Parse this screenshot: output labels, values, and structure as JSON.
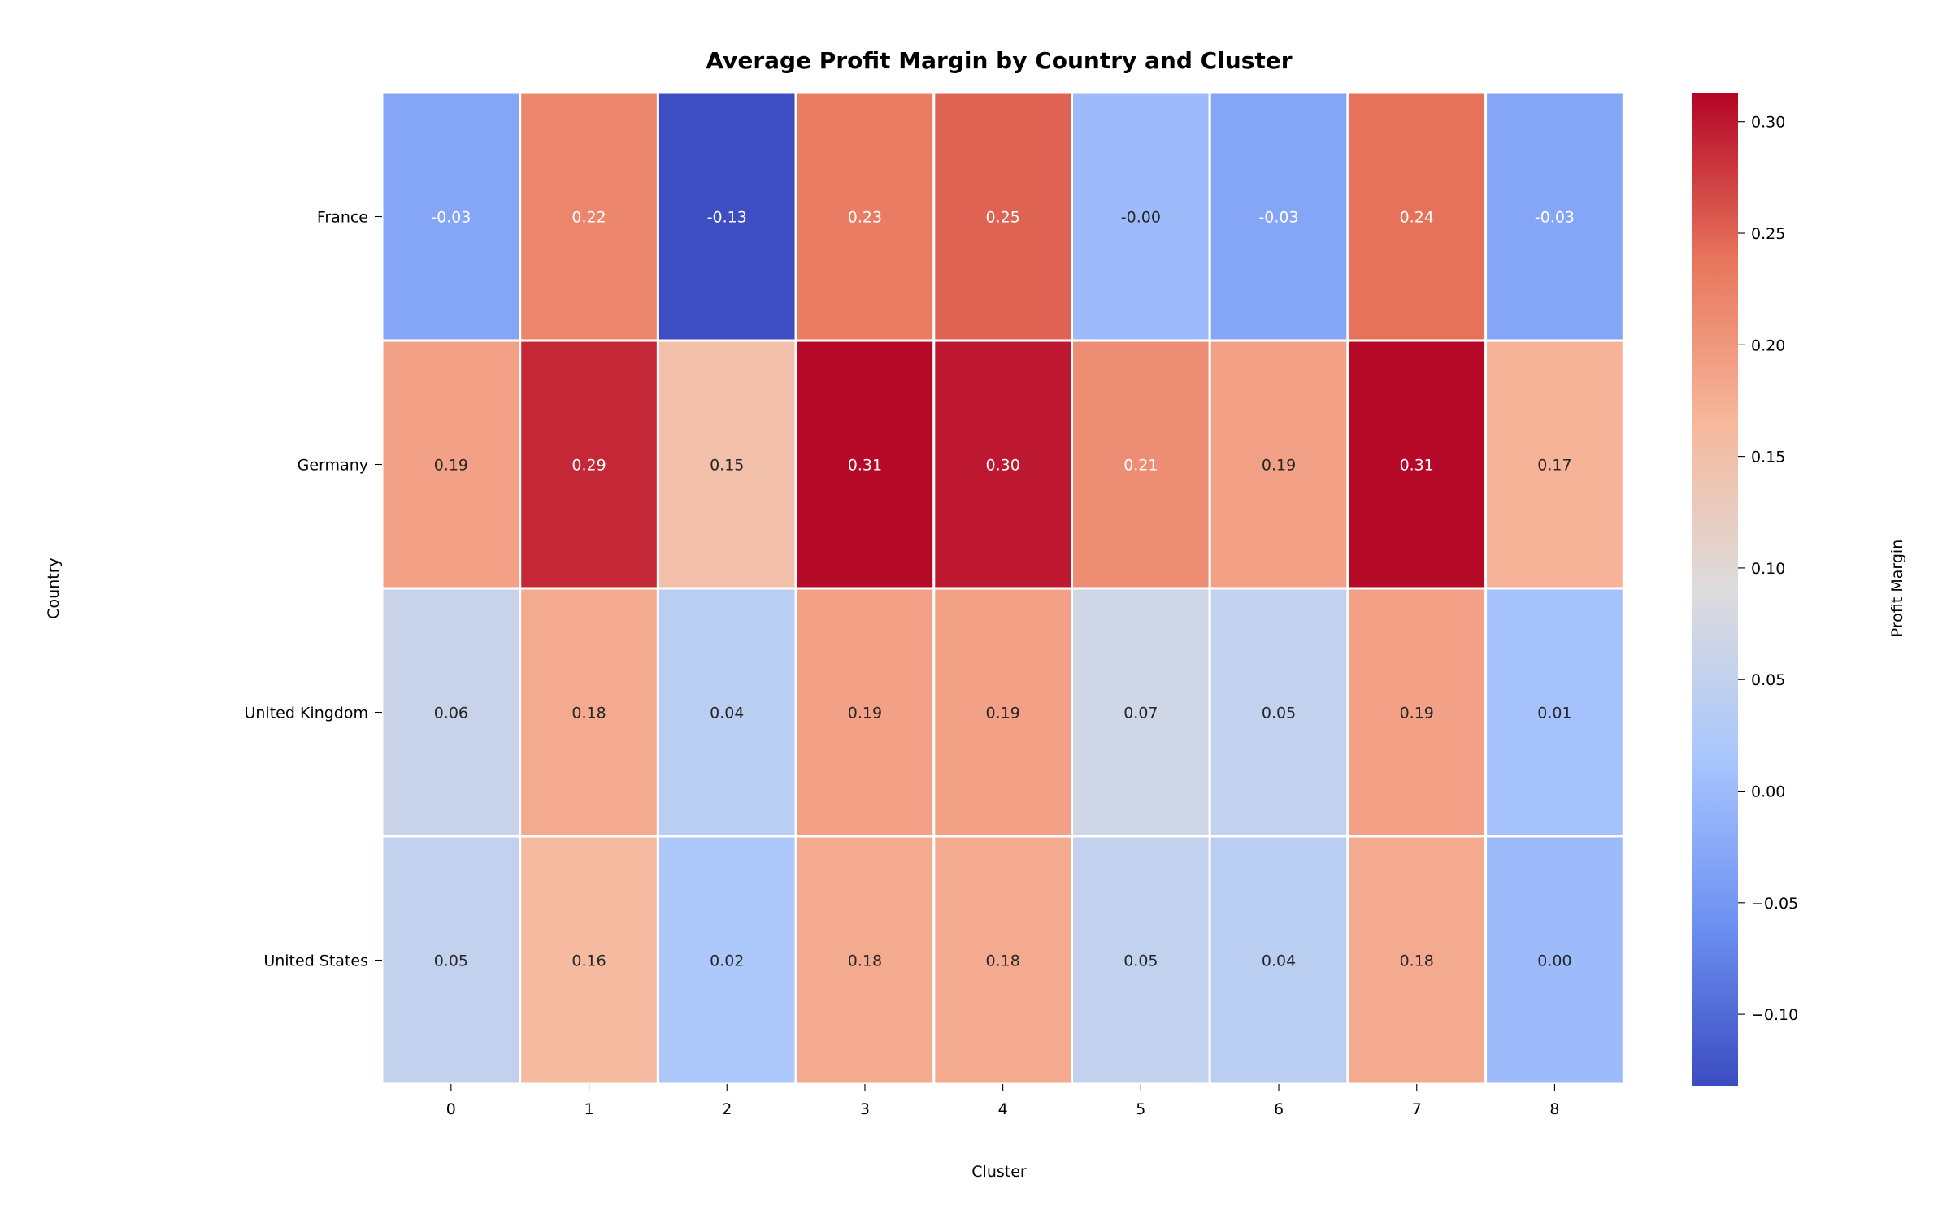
{
  "chart_data": {
    "type": "heatmap",
    "title": "Average Profit Margin by Country and Cluster",
    "xlabel": "Cluster",
    "ylabel": "Country",
    "x_categories": [
      "0",
      "1",
      "2",
      "3",
      "4",
      "5",
      "6",
      "7",
      "8"
    ],
    "y_categories": [
      "France",
      "Germany",
      "United Kingdom",
      "United States"
    ],
    "values": [
      [
        -0.03,
        0.22,
        -0.13,
        0.23,
        0.25,
        -0.0,
        -0.03,
        0.24,
        -0.03
      ],
      [
        0.19,
        0.29,
        0.15,
        0.31,
        0.3,
        0.21,
        0.19,
        0.31,
        0.17
      ],
      [
        0.06,
        0.18,
        0.04,
        0.19,
        0.19,
        0.07,
        0.05,
        0.19,
        0.01
      ],
      [
        0.05,
        0.16,
        0.02,
        0.18,
        0.18,
        0.05,
        0.04,
        0.18,
        0.0
      ]
    ],
    "cell_labels": [
      [
        "-0.03",
        "0.22",
        "-0.13",
        "0.23",
        "0.25",
        "-0.00",
        "-0.03",
        "0.24",
        "-0.03"
      ],
      [
        "0.19",
        "0.29",
        "0.15",
        "0.31",
        "0.30",
        "0.21",
        "0.19",
        "0.31",
        "0.17"
      ],
      [
        "0.06",
        "0.18",
        "0.04",
        "0.19",
        "0.19",
        "0.07",
        "0.05",
        "0.19",
        "0.01"
      ],
      [
        "0.05",
        "0.16",
        "0.02",
        "0.18",
        "0.18",
        "0.05",
        "0.04",
        "0.18",
        "0.00"
      ]
    ],
    "colormap": "coolwarm",
    "colormap_stops": [
      "#3b4cc0",
      "#6f92f3",
      "#aac7fd",
      "#dddcdc",
      "#f7b89c",
      "#e7745b",
      "#b40426"
    ],
    "colorbar": {
      "label": "Profit Margin",
      "range": [
        -0.132,
        0.313
      ],
      "ticks": [
        -0.1,
        -0.05,
        0.0,
        0.05,
        0.1,
        0.15,
        0.2,
        0.25,
        0.3
      ],
      "tick_labels": [
        "−0.10",
        "−0.05",
        "0.00",
        "0.05",
        "0.10",
        "0.15",
        "0.20",
        "0.25",
        "0.30"
      ]
    },
    "grid": false,
    "legend": "colorbar-right"
  }
}
